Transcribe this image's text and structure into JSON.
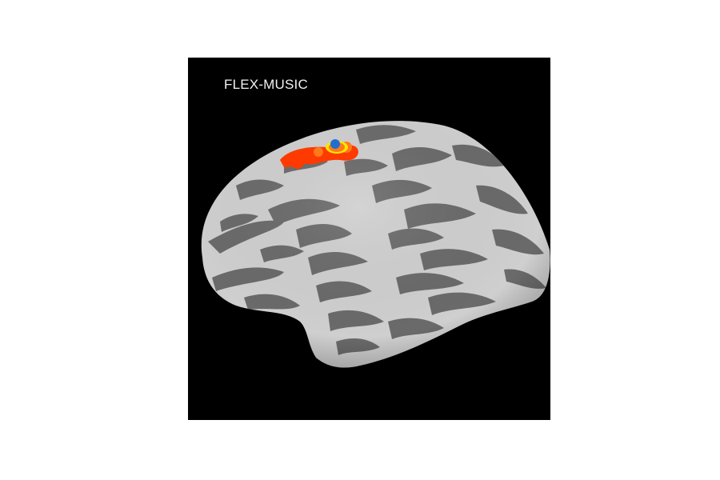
{
  "figure": {
    "label": "FLEX-MUSIC",
    "colors": {
      "background": "#000000",
      "gyri": "#cfcfcf",
      "sulci": "#6a6a6a",
      "activation_outer": "#ff3a00",
      "activation_inner": "#ff7a1a",
      "activation_ring": "#ffe500",
      "peak": "#1f6fd0"
    }
  }
}
